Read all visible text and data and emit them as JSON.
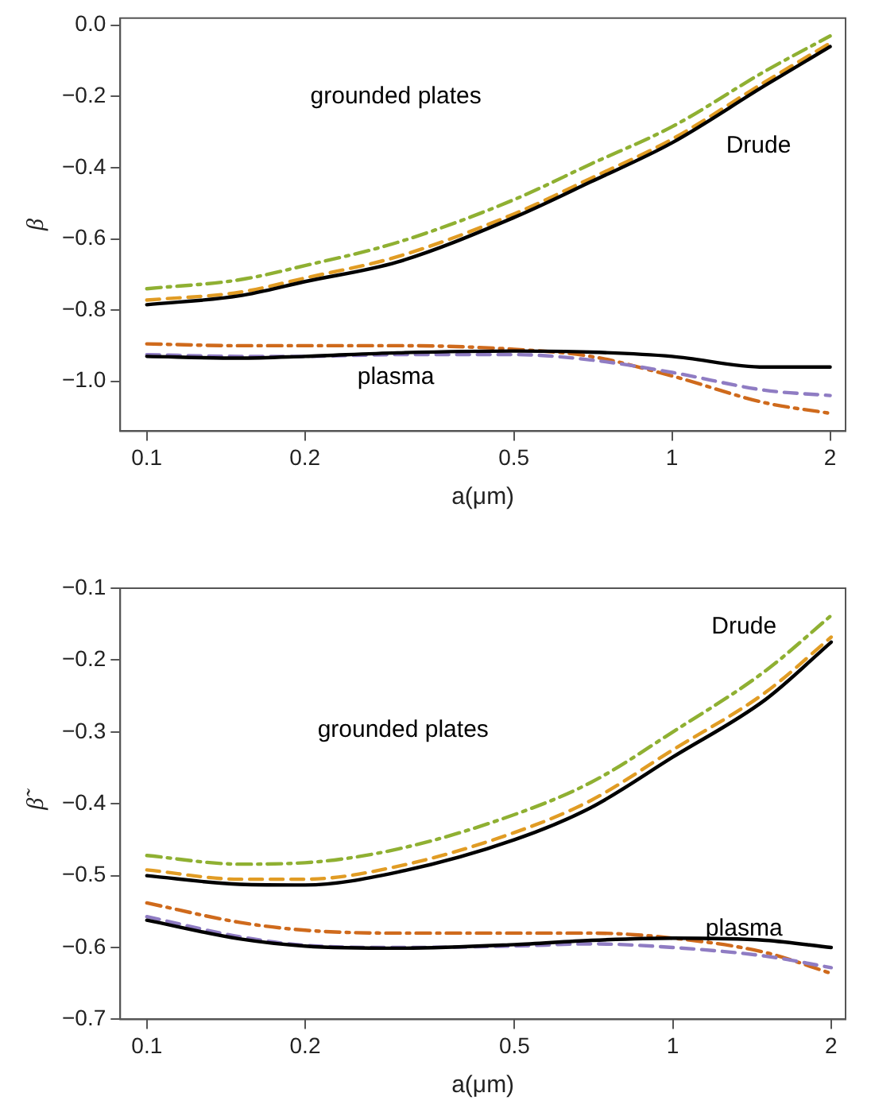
{
  "chart_data": [
    {
      "type": "line",
      "xlabel": "a(μm)",
      "ylabel": "β",
      "log": "x",
      "grid": false,
      "legend": false,
      "marker": "none",
      "x": [
        0.1,
        0.15,
        0.2,
        0.3,
        0.5,
        0.7,
        1,
        1.5,
        2
      ],
      "xlim": [
        0.089,
        2.14
      ],
      "xticks": [
        0.1,
        0.2,
        0.5,
        1,
        2
      ],
      "ylim": [
        -1.14,
        0.02
      ],
      "yticks": [
        {
          "value": 0,
          "label": "0.0"
        },
        {
          "value": -0.2,
          "label": "−0.2"
        },
        {
          "value": -0.4,
          "label": "−0.4"
        },
        {
          "value": -0.6,
          "label": "−0.6"
        },
        {
          "value": -0.8,
          "label": "−0.8"
        },
        {
          "value": -1.0,
          "label": "−1.0"
        }
      ],
      "series": [
        {
          "color": "#000000",
          "line_style": "solid",
          "values": [
            -0.785,
            -0.76,
            -0.72,
            -0.665,
            -0.54,
            -0.44,
            -0.33,
            -0.17,
            -0.06
          ]
        },
        {
          "color": "#e19c24",
          "line_style": "dashed",
          "values": [
            -0.772,
            -0.75,
            -0.71,
            -0.65,
            -0.53,
            -0.43,
            -0.32,
            -0.16,
            -0.05
          ]
        },
        {
          "color": "#8fb032",
          "line_style": "dashdot",
          "values": [
            -0.74,
            -0.715,
            -0.675,
            -0.61,
            -0.49,
            -0.39,
            -0.285,
            -0.13,
            -0.03
          ]
        },
        {
          "color": "#000000",
          "line_style": "solid",
          "values": [
            -0.93,
            -0.935,
            -0.93,
            -0.92,
            -0.915,
            -0.918,
            -0.93,
            -0.96,
            -0.96
          ]
        },
        {
          "color": "#8f7cc3",
          "line_style": "dashed",
          "values": [
            -0.925,
            -0.93,
            -0.93,
            -0.925,
            -0.925,
            -0.94,
            -0.975,
            -1.025,
            -1.04
          ]
        },
        {
          "color": "#cf6a1c",
          "line_style": "dashdot",
          "values": [
            -0.895,
            -0.9,
            -0.9,
            -0.9,
            -0.91,
            -0.93,
            -0.985,
            -1.06,
            -1.09
          ]
        }
      ],
      "annotations": [
        "grounded plates",
        "Drude",
        "plasma"
      ]
    },
    {
      "type": "line",
      "xlabel": "a(μm)",
      "ylabel": "β̃",
      "log": "x",
      "grid": false,
      "legend": false,
      "marker": "none",
      "x": [
        0.1,
        0.15,
        0.2,
        0.3,
        0.5,
        0.7,
        1,
        1.5,
        2
      ],
      "xlim": [
        0.089,
        2.13
      ],
      "xticks": [
        0.1,
        0.2,
        0.5,
        1,
        2
      ],
      "ylim": [
        -0.7,
        -0.1
      ],
      "yticks": [
        {
          "value": -0.1,
          "label": "−0.1"
        },
        {
          "value": -0.2,
          "label": "−0.2"
        },
        {
          "value": -0.3,
          "label": "−0.3"
        },
        {
          "value": -0.4,
          "label": "−0.4"
        },
        {
          "value": -0.5,
          "label": "−0.5"
        },
        {
          "value": -0.6,
          "label": "−0.6"
        },
        {
          "value": -0.7,
          "label": "−0.7"
        }
      ],
      "series": [
        {
          "color": "#000000",
          "line_style": "solid",
          "values": [
            -0.5,
            -0.512,
            -0.513,
            -0.495,
            -0.45,
            -0.405,
            -0.335,
            -0.255,
            -0.175
          ]
        },
        {
          "color": "#e19c24",
          "line_style": "dashed",
          "values": [
            -0.492,
            -0.505,
            -0.505,
            -0.487,
            -0.44,
            -0.395,
            -0.325,
            -0.245,
            -0.168
          ]
        },
        {
          "color": "#8fb032",
          "line_style": "dashdot",
          "values": [
            -0.472,
            -0.484,
            -0.482,
            -0.463,
            -0.415,
            -0.37,
            -0.3,
            -0.215,
            -0.138
          ]
        },
        {
          "color": "#000000",
          "line_style": "solid",
          "values": [
            -0.562,
            -0.588,
            -0.598,
            -0.601,
            -0.596,
            -0.59,
            -0.587,
            -0.59,
            -0.6
          ]
        },
        {
          "color": "#8f7cc3",
          "line_style": "dashed",
          "values": [
            -0.557,
            -0.585,
            -0.597,
            -0.6,
            -0.598,
            -0.595,
            -0.6,
            -0.612,
            -0.628
          ]
        },
        {
          "color": "#cf6a1c",
          "line_style": "dashdot",
          "values": [
            -0.538,
            -0.565,
            -0.576,
            -0.58,
            -0.58,
            -0.58,
            -0.587,
            -0.607,
            -0.636
          ]
        }
      ],
      "annotations": [
        "Drude",
        "grounded plates",
        "plasma"
      ]
    }
  ]
}
